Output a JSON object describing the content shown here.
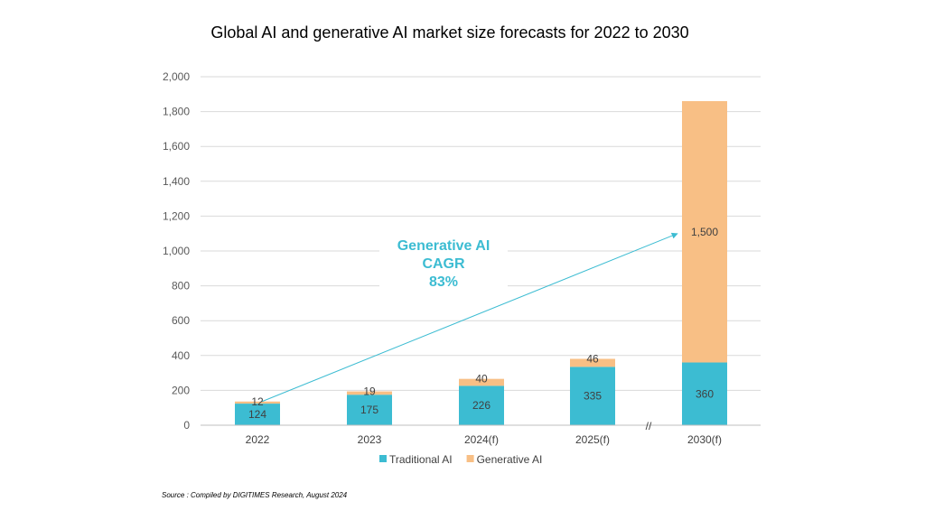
{
  "chart_data": {
    "type": "bar",
    "stacked": true,
    "title": "Global AI and generative AI market size forecasts for 2022 to 2030",
    "categories": [
      "2022",
      "2023",
      "2024(f)",
      "2025(f)",
      "2030(f)"
    ],
    "series": [
      {
        "name": "Traditional AI",
        "values": [
          124,
          175,
          226,
          335,
          360
        ],
        "color": "#3CBCD2"
      },
      {
        "name": "Generative AI",
        "values": [
          12,
          19,
          40,
          46,
          1500
        ],
        "color": "#F8BF85"
      }
    ],
    "yticks": [
      "0",
      "200",
      "400",
      "600",
      "800",
      "1,000",
      "1,200",
      "1,400",
      "1,600",
      "1,800",
      "2,000"
    ],
    "ylim": [
      0,
      2000
    ],
    "grid": true,
    "legend_position": "bottom",
    "axis_break_between": [
      "2025(f)",
      "2030(f)"
    ],
    "axis_break_mark": "//",
    "annotation": {
      "lines": [
        "Generative AI",
        "CAGR",
        "83%"
      ],
      "color": "#3CBCD2",
      "arrow_from": {
        "category": "2022",
        "value": 136
      },
      "arrow_to": {
        "category": "2030(f)",
        "value": 1100
      }
    },
    "source": "Source : Compiled by DIGITIMES Research, August 2024"
  }
}
